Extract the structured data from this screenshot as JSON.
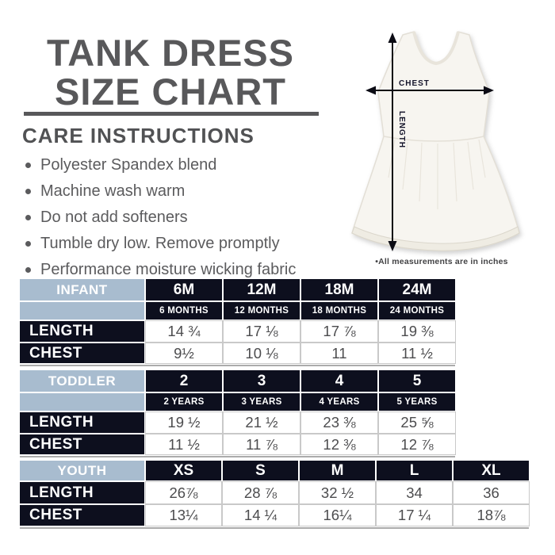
{
  "title": {
    "line1": "TANK DRESS",
    "line2": "SIZE CHART"
  },
  "care": {
    "heading": "CARE INSTRUCTIONS",
    "items": [
      "Polyester Spandex blend",
      "Machine wash warm",
      "Do not add softeners",
      "Tumble dry low. Remove promptly",
      "Performance moisture wicking fabric"
    ]
  },
  "diagram": {
    "chest_label": "CHEST",
    "length_label": "LENGTH",
    "note": "•All measurements are in inches"
  },
  "colors": {
    "title_gray": "#58585a",
    "header_navy": "#0d0f1e",
    "group_light_blue": "#a8bccf",
    "value_text": "#4c4c4e"
  },
  "tables": [
    {
      "name": "INFANT",
      "sizes": [
        "6M",
        "12M",
        "18M",
        "24M"
      ],
      "size_subs": [
        "6 MONTHS",
        "12 MONTHS",
        "18 MONTHS",
        "24 MONTHS"
      ],
      "rows": [
        {
          "label": "LENGTH",
          "values": [
            "14 ¾",
            "17 ⅛",
            "17 ⅞",
            "19 ⅜"
          ]
        },
        {
          "label": "CHEST",
          "values": [
            "9½",
            "10 ⅛",
            "11",
            "11 ½"
          ]
        }
      ]
    },
    {
      "name": "TODDLER",
      "sizes": [
        "2",
        "3",
        "4",
        "5"
      ],
      "size_subs": [
        "2 YEARS",
        "3 YEARS",
        "4 YEARS",
        "5 YEARS"
      ],
      "rows": [
        {
          "label": "LENGTH",
          "values": [
            "19 ½",
            "21 ½",
            "23 ⅜",
            "25 ⅝"
          ]
        },
        {
          "label": "CHEST",
          "values": [
            "11 ½",
            "11 ⅞",
            "12 ⅜",
            "12 ⅞"
          ]
        }
      ]
    },
    {
      "name": "YOUTH",
      "sizes": [
        "XS",
        "S",
        "M",
        "L",
        "XL"
      ],
      "rows": [
        {
          "label": "LENGTH",
          "values": [
            "26⅞",
            "28 ⅞",
            "32 ½",
            "34",
            "36"
          ]
        },
        {
          "label": "CHEST",
          "values": [
            "13¼",
            "14 ¼",
            "16¼",
            "17 ¼",
            "18⅞"
          ]
        }
      ]
    }
  ]
}
